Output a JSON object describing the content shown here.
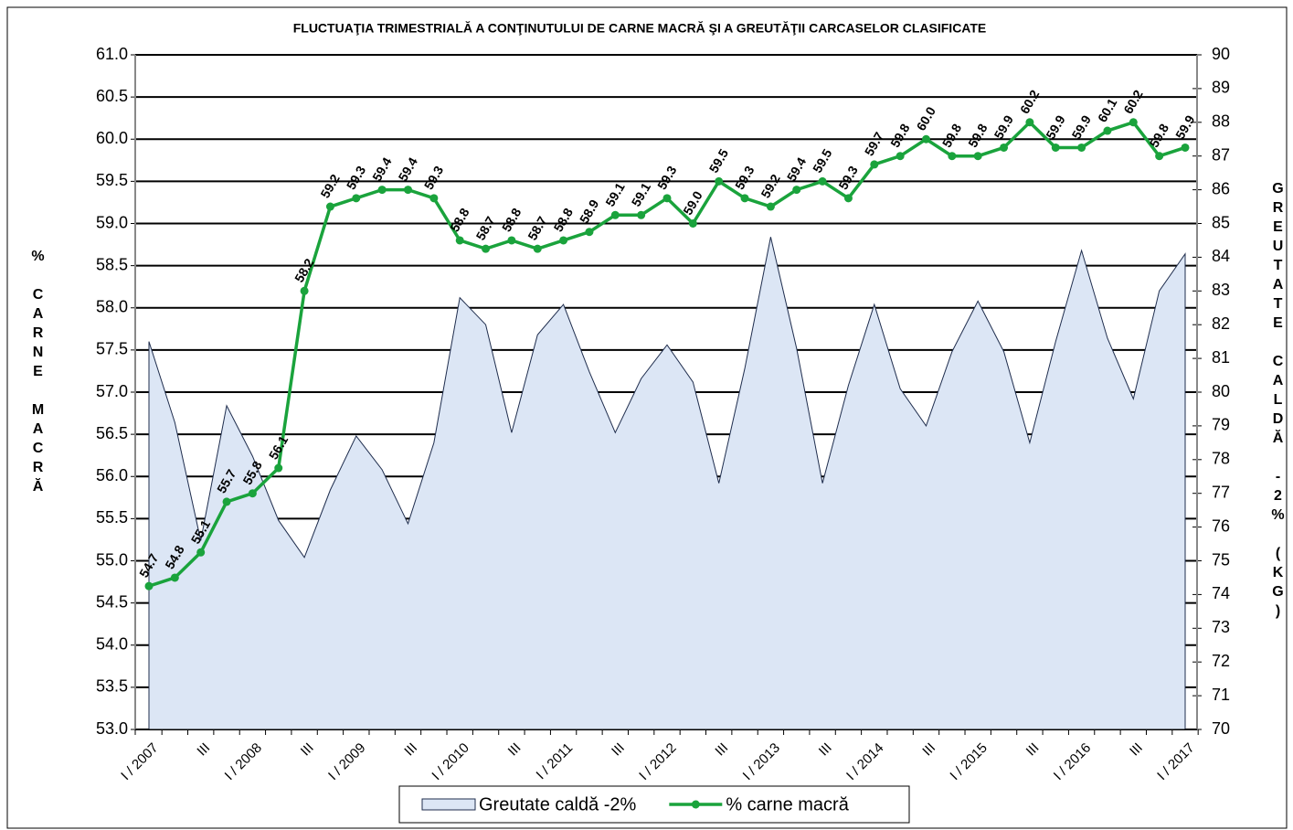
{
  "chart_data": {
    "type": "line",
    "title": "FLUCTUAŢIA TRIMESTRIALĂ  A CONŢINUTULUI  DE CARNE MACRĂ  ŞI A GREUTĂŢII  CARCASELOR CLASIFICATE",
    "y_label": "% CARNE MACRĂ",
    "y2_label": "GREUTATE CALDĂ -2% (KG)",
    "categories": [
      "I / 2007",
      null,
      "III",
      null,
      "I / 2008",
      null,
      "III",
      null,
      "I / 2009",
      null,
      "III",
      null,
      "I / 2010",
      null,
      "III",
      null,
      "I / 2011",
      null,
      "III",
      null,
      "I / 2012",
      null,
      "III",
      null,
      "I / 2013",
      null,
      "III",
      null,
      "I / 2014",
      null,
      "III",
      null,
      "I / 2015",
      null,
      "III",
      null,
      "I / 2016",
      null,
      "III",
      null,
      "I / 2017"
    ],
    "series": [
      {
        "name": "Greutate caldă -2%",
        "type": "area",
        "axis": "y2",
        "color": "#dce6f5",
        "line_color": "#1f2d4d",
        "values": [
          81.5,
          79.1,
          75.6,
          79.6,
          78.1,
          76.2,
          75.1,
          77.1,
          78.7,
          77.7,
          76.1,
          78.5,
          82.8,
          82.0,
          78.8,
          81.7,
          82.6,
          80.6,
          78.8,
          80.4,
          81.4,
          80.3,
          77.3,
          80.7,
          84.6,
          81.3,
          77.3,
          80.2,
          82.6,
          80.1,
          79.0,
          81.2,
          82.7,
          81.2,
          78.5,
          81.5,
          84.2,
          81.6,
          79.8,
          83.0,
          84.1
        ]
      },
      {
        "name": "% carne macră",
        "type": "line",
        "axis": "y",
        "color": "#1aa33c",
        "values": [
          54.7,
          54.8,
          55.1,
          55.7,
          55.8,
          56.1,
          58.2,
          59.2,
          59.3,
          59.4,
          59.4,
          59.3,
          58.8,
          58.7,
          58.8,
          58.7,
          58.8,
          58.9,
          59.1,
          59.1,
          59.3,
          59.0,
          59.5,
          59.3,
          59.2,
          59.4,
          59.5,
          59.3,
          59.7,
          59.8,
          60.0,
          59.8,
          59.8,
          59.9,
          60.2,
          59.9,
          59.9,
          60.1,
          60.2,
          59.8,
          59.9
        ],
        "value_labels": [
          "54.7",
          "54.8",
          "55.1",
          "55.7",
          "55.8",
          "56.1",
          "58.2",
          "59.2",
          "59.3",
          "59.4",
          "59.4",
          "59.3",
          "58.8",
          "58.7",
          "58.8",
          "58.7",
          "58.8",
          "58.9",
          "59.1",
          "59.1",
          "59.3",
          "59.0",
          "59.5",
          "59.3",
          "59.2",
          "59.4",
          "59.5",
          "59.3",
          "59.7",
          "59.8",
          "60.0",
          "59.8",
          "59.8",
          "59.9",
          "60.2",
          "59.9",
          "59.9",
          "60.1",
          "60.2",
          "59.8",
          "59.9"
        ]
      }
    ],
    "ylim": [
      53,
      61
    ],
    "yticks": [
      {
        "value": 53,
        "label": "53.0"
      },
      {
        "value": 53.5,
        "label": "53.5"
      },
      {
        "value": 54,
        "label": "54.0"
      },
      {
        "value": 54.5,
        "label": "54.5"
      },
      {
        "value": 55,
        "label": "55.0"
      },
      {
        "value": 55.5,
        "label": "55.5"
      },
      {
        "value": 56,
        "label": "56.0"
      },
      {
        "value": 56.5,
        "label": "56.5"
      },
      {
        "value": 57,
        "label": "57.0"
      },
      {
        "value": 57.5,
        "label": "57.5"
      },
      {
        "value": 58,
        "label": "58.0"
      },
      {
        "value": 58.5,
        "label": "58.5"
      },
      {
        "value": 59,
        "label": "59.0"
      },
      {
        "value": 59.5,
        "label": "59.5"
      },
      {
        "value": 60,
        "label": "60.0"
      },
      {
        "value": 60.5,
        "label": "60.5"
      },
      {
        "value": 61,
        "label": "61.0"
      }
    ],
    "y2lim": [
      70,
      90
    ],
    "y2ticks": [
      70,
      71,
      72,
      73,
      74,
      75,
      76,
      77,
      78,
      79,
      80,
      81,
      82,
      83,
      84,
      85,
      86,
      87,
      88,
      89,
      90
    ],
    "grid": true,
    "legend": "bottom"
  }
}
